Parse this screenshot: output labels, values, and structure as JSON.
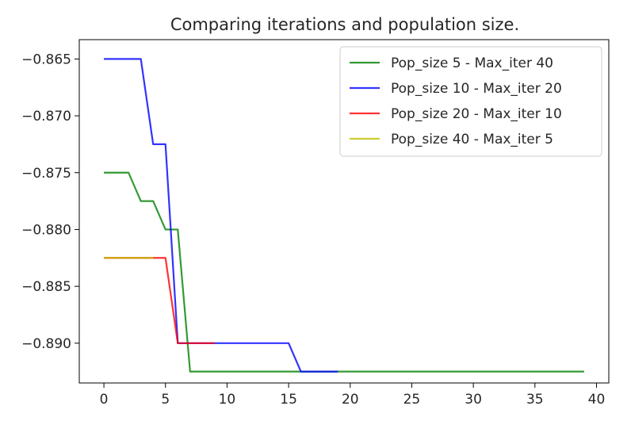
{
  "chart_data": {
    "type": "line",
    "title": "Comparing iterations and population size.",
    "xlabel": "",
    "ylabel": "",
    "xlim": [
      -2,
      41
    ],
    "ylim": [
      -0.8935,
      -0.8633
    ],
    "xticks": [
      0,
      5,
      10,
      15,
      20,
      25,
      30,
      35,
      40
    ],
    "yticks": [
      -0.865,
      -0.87,
      -0.875,
      -0.88,
      -0.885,
      -0.89
    ],
    "xtick_labels": [
      "0",
      "5",
      "10",
      "15",
      "20",
      "25",
      "30",
      "35",
      "40"
    ],
    "ytick_labels": [
      "-0.865",
      "-0.870",
      "-0.875",
      "-0.880",
      "-0.885",
      "-0.890"
    ],
    "grid": false,
    "legend_position": "top-right",
    "series": [
      {
        "name": "Pop_size 5 - Max_iter 40",
        "color": "#008000",
        "x": [
          0,
          1,
          2,
          3,
          4,
          5,
          6,
          7,
          8,
          9,
          10,
          11,
          12,
          13,
          14,
          15,
          16,
          17,
          18,
          19,
          20,
          21,
          22,
          23,
          24,
          25,
          26,
          27,
          28,
          29,
          30,
          31,
          32,
          33,
          34,
          35,
          36,
          37,
          38,
          39
        ],
        "y": [
          -0.875,
          -0.875,
          -0.875,
          -0.8775,
          -0.8775,
          -0.88,
          -0.88,
          -0.8925,
          -0.8925,
          -0.8925,
          -0.8925,
          -0.8925,
          -0.8925,
          -0.8925,
          -0.8925,
          -0.8925,
          -0.8925,
          -0.8925,
          -0.8925,
          -0.8925,
          -0.8925,
          -0.8925,
          -0.8925,
          -0.8925,
          -0.8925,
          -0.8925,
          -0.8925,
          -0.8925,
          -0.8925,
          -0.8925,
          -0.8925,
          -0.8925,
          -0.8925,
          -0.8925,
          -0.8925,
          -0.8925,
          -0.8925,
          -0.8925,
          -0.8925,
          -0.8925
        ]
      },
      {
        "name": "Pop_size 10 - Max_iter 20",
        "color": "#0000ff",
        "x": [
          0,
          1,
          2,
          3,
          4,
          5,
          6,
          7,
          8,
          9,
          10,
          11,
          12,
          13,
          14,
          15,
          16,
          17,
          18,
          19
        ],
        "y": [
          -0.865,
          -0.865,
          -0.865,
          -0.865,
          -0.8725,
          -0.8725,
          -0.89,
          -0.89,
          -0.89,
          -0.89,
          -0.89,
          -0.89,
          -0.89,
          -0.89,
          -0.89,
          -0.89,
          -0.8925,
          -0.8925,
          -0.8925,
          -0.8925
        ]
      },
      {
        "name": "Pop_size 20 - Max_iter 10",
        "color": "#ff0000",
        "x": [
          0,
          1,
          2,
          3,
          4,
          5,
          6,
          7,
          8,
          9
        ],
        "y": [
          -0.8825,
          -0.8825,
          -0.8825,
          -0.8825,
          -0.8825,
          -0.8825,
          -0.89,
          -0.89,
          -0.89,
          -0.89
        ]
      },
      {
        "name": "Pop_size 40 - Max_iter 5",
        "color": "#bfbf00",
        "x": [
          0,
          1,
          2,
          3,
          4
        ],
        "y": [
          -0.8825,
          -0.8825,
          -0.8825,
          -0.8825,
          -0.8825
        ]
      }
    ]
  }
}
